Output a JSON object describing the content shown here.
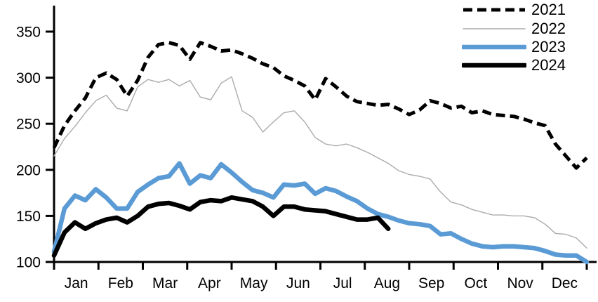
{
  "chart_data": {
    "type": "line",
    "title": "",
    "xlabel": "",
    "ylabel": "",
    "x_axis": {
      "tick_labels": [
        "Jan",
        "Feb",
        "Mar",
        "Apr",
        "May",
        "Jun",
        "Jul",
        "Aug",
        "Sep",
        "Oct",
        "Nov",
        "Dec"
      ],
      "cadence": "weekly",
      "points_per_year": 52
    },
    "y_axis": {
      "ticks": [
        100,
        150,
        200,
        250,
        300,
        350
      ],
      "range": [
        100,
        375
      ],
      "grid": false
    },
    "legend_position": "top-right",
    "series": [
      {
        "name": "2021",
        "style": "dashed",
        "color": "#000000",
        "width": 5,
        "values": [
          224,
          248,
          264,
          278,
          300,
          305,
          298,
          280,
          297,
          322,
          336,
          338,
          335,
          320,
          338,
          334,
          329,
          330,
          326,
          321,
          315,
          311,
          302,
          297,
          291,
          276,
          299,
          290,
          280,
          274,
          272,
          270,
          271,
          266,
          260,
          265,
          275,
          272,
          267,
          269,
          262,
          264,
          260,
          259,
          258,
          255,
          251,
          248,
          228,
          215,
          202,
          213
        ]
      },
      {
        "name": "2022",
        "style": "solid",
        "color": "#ababab",
        "width": 1.4,
        "values": [
          215,
          234,
          247,
          262,
          275,
          281,
          267,
          264,
          290,
          298,
          295,
          298,
          291,
          297,
          279,
          276,
          294,
          301,
          264,
          257,
          241,
          252,
          262,
          264,
          252,
          235,
          228,
          226,
          228,
          224,
          219,
          213,
          207,
          199,
          195,
          193,
          190,
          176,
          165,
          162,
          157,
          154,
          151,
          151,
          150,
          150,
          148,
          141,
          131,
          130,
          126,
          115
        ]
      },
      {
        "name": "2023",
        "style": "solid",
        "color": "#5b9bd5",
        "width": 6.5,
        "values": [
          111,
          158,
          172,
          167,
          179,
          170,
          158,
          158,
          176,
          184,
          191,
          193,
          207,
          185,
          194,
          191,
          206,
          197,
          187,
          178,
          175,
          170,
          184,
          183,
          185,
          174,
          180,
          177,
          171,
          166,
          158,
          152,
          149,
          145,
          142,
          141,
          139,
          130,
          131,
          125,
          120,
          117,
          116,
          117,
          117,
          116,
          115,
          112,
          108,
          107,
          107,
          100
        ]
      },
      {
        "name": "2024",
        "style": "solid",
        "color": "#000000",
        "width": 6.5,
        "values": [
          107,
          132,
          143,
          136,
          142,
          146,
          148,
          143,
          150,
          160,
          163,
          164,
          161,
          157,
          165,
          167,
          166,
          170,
          168,
          166,
          160,
          150,
          160,
          160,
          157,
          156,
          155,
          152,
          149,
          146,
          146,
          148,
          136
        ]
      }
    ]
  }
}
